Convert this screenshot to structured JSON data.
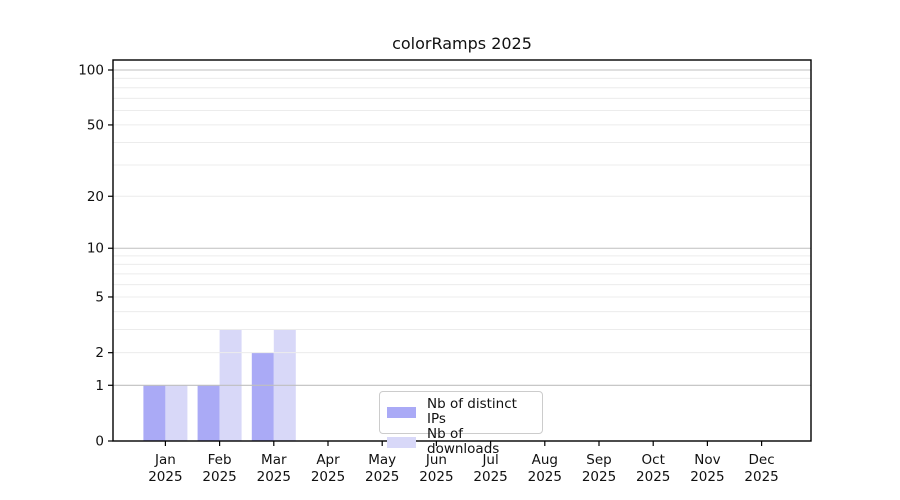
{
  "chart_data": {
    "type": "bar",
    "title": "colorRamps 2025",
    "categories": [
      "Jan",
      "Feb",
      "Mar",
      "Apr",
      "May",
      "Jun",
      "Jul",
      "Aug",
      "Sep",
      "Oct",
      "Nov",
      "Dec"
    ],
    "category_year": "2025",
    "series": [
      {
        "name": "Nb of distinct IPs",
        "color": "#aaaaf6",
        "values": [
          1,
          1,
          2,
          0,
          0,
          0,
          0,
          0,
          0,
          0,
          0,
          0
        ]
      },
      {
        "name": "Nb of downloads",
        "color": "#d8d8f8",
        "values": [
          1,
          3,
          3,
          0,
          0,
          0,
          0,
          0,
          0,
          0,
          0,
          0
        ]
      }
    ],
    "xlabel": "",
    "ylabel": "",
    "y_axis": {
      "scale": "log1p",
      "tick_labels": [
        "0",
        "1",
        "2",
        "5",
        "10",
        "20",
        "50",
        "100"
      ],
      "tick_values": [
        0,
        1,
        2,
        5,
        10,
        20,
        50,
        100
      ],
      "ylim": [
        0,
        113
      ]
    },
    "gridlines": {
      "major_values": [
        1,
        10,
        100
      ],
      "minor_values": [
        2,
        3,
        4,
        5,
        6,
        7,
        8,
        9,
        20,
        30,
        40,
        50,
        60,
        70,
        80,
        90
      ],
      "major_color": "#bfbfbf",
      "minor_color": "#ececec"
    },
    "legend": {
      "position": "inside-bottom-center",
      "entries": [
        "Nb of distinct IPs",
        "Nb of downloads"
      ]
    },
    "grid": true,
    "spine_color": "#000000",
    "text_color": "#111111"
  }
}
